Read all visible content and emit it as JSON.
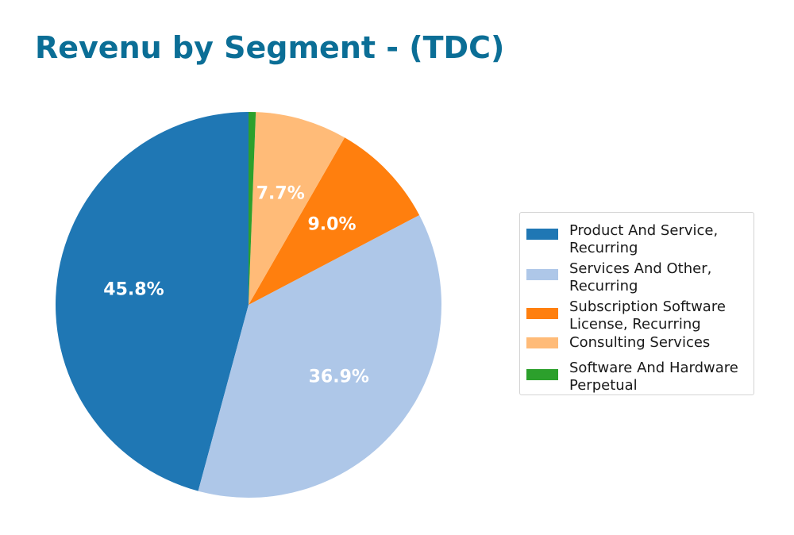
{
  "chart_data": {
    "type": "pie",
    "title": "Revenu by Segment - (TDC)",
    "title_color": "#0b6e96",
    "legend_position": "right",
    "slices": [
      {
        "label": "Product And Service,\nRecurring",
        "value": 45.8,
        "display": "45.8%",
        "color": "#1f77b4"
      },
      {
        "label": "Services And Other,\nRecurring",
        "value": 36.9,
        "display": "36.9%",
        "color": "#aec7e8"
      },
      {
        "label": "Subscription Software\nLicense, Recurring",
        "value": 9.0,
        "display": "9.0%",
        "color": "#ff7f0e"
      },
      {
        "label": "Consulting Services",
        "value": 7.7,
        "display": "7.7%",
        "color": "#ffbb78"
      },
      {
        "label": "Software And Hardware\nPerpetual",
        "value": 0.6,
        "display": "",
        "color": "#2ca02c"
      }
    ]
  }
}
